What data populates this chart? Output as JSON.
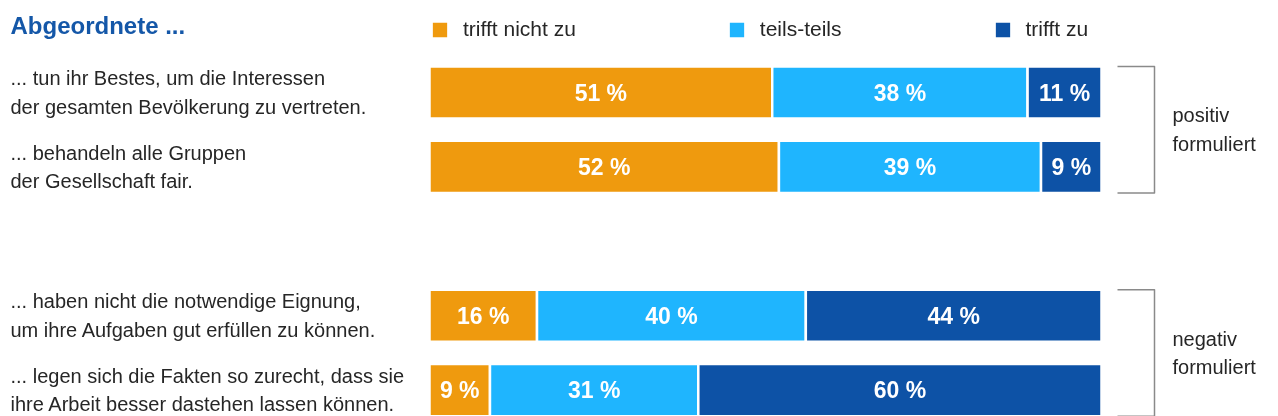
{
  "chart_data": {
    "type": "bar",
    "orientation": "horizontal",
    "stacked": true,
    "title": "Abgeordnete ...",
    "categories": [
      "... tun ihr Bestes, um die Interessen der gesamten Bevölkerung zu vertreten.",
      "... behandeln alle Gruppen der Gesellschaft fair.",
      null,
      "... haben nicht die notwendige Eignung, um ihre Aufgaben gut erfüllen zu können.",
      "... legen sich die Fakten so zurecht, dass sie ihre Arbeit besser dastehen lassen können."
    ],
    "series": [
      {
        "name": "trifft nicht zu",
        "color": "#ef9a0e",
        "values": [
          51,
          52,
          null,
          16,
          9
        ],
        "value_labels": [
          "51 %",
          "52 %",
          null,
          "16 %",
          "9 %"
        ]
      },
      {
        "name": "teils-teils",
        "color": "#1fb5fe",
        "values": [
          38,
          39,
          null,
          40,
          31
        ],
        "value_labels": [
          "38 %",
          "39 %",
          null,
          "40 %",
          "31 %"
        ]
      },
      {
        "name": "trifft zu",
        "color": "#0d52a6",
        "values": [
          11,
          9,
          null,
          44,
          60
        ],
        "value_labels": [
          "11 %",
          "9 %",
          null,
          "44 %",
          "60 %"
        ]
      }
    ],
    "xlim": [
      0,
      100
    ],
    "legend": "top",
    "tick_labels": "y",
    "annotations": [
      "positiv formuliert",
      "negativ formuliert"
    ]
  }
}
